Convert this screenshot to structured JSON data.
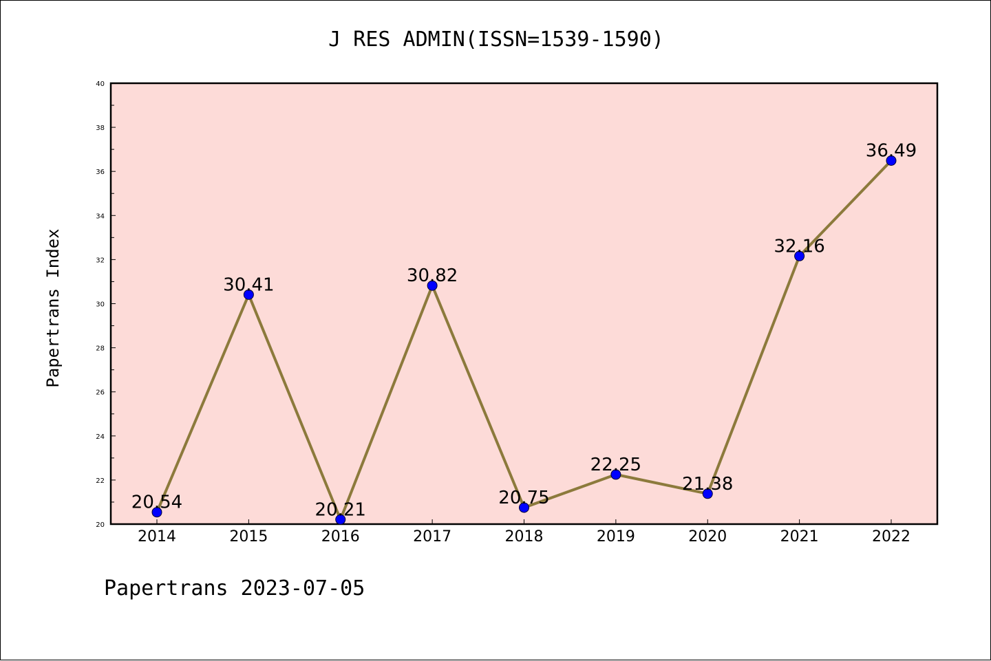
{
  "colors": {
    "plot_background": "#fddbd8",
    "line": "#8c7a3c",
    "marker": "#0000ff",
    "axis": "#000000"
  },
  "chart_data": {
    "type": "line",
    "title": "J RES ADMIN(ISSN=1539-1590)",
    "xlabel": "",
    "ylabel": "Papertrans Index",
    "categories": [
      "2014",
      "2015",
      "2016",
      "2017",
      "2018",
      "2019",
      "2020",
      "2021",
      "2022"
    ],
    "values": [
      20.54,
      30.41,
      20.21,
      30.82,
      20.75,
      22.25,
      21.38,
      32.16,
      36.49
    ],
    "data_labels": [
      "20.54",
      "30.41",
      "20.21",
      "30.82",
      "20.75",
      "22.25",
      "21.38",
      "32.16",
      "36.49"
    ],
    "ylim": [
      20,
      40
    ],
    "yticks": [
      "20",
      "22",
      "24",
      "26",
      "28",
      "30",
      "32",
      "34",
      "36",
      "38",
      "40"
    ],
    "grid": false,
    "footer": "Papertrans 2023-07-05"
  }
}
